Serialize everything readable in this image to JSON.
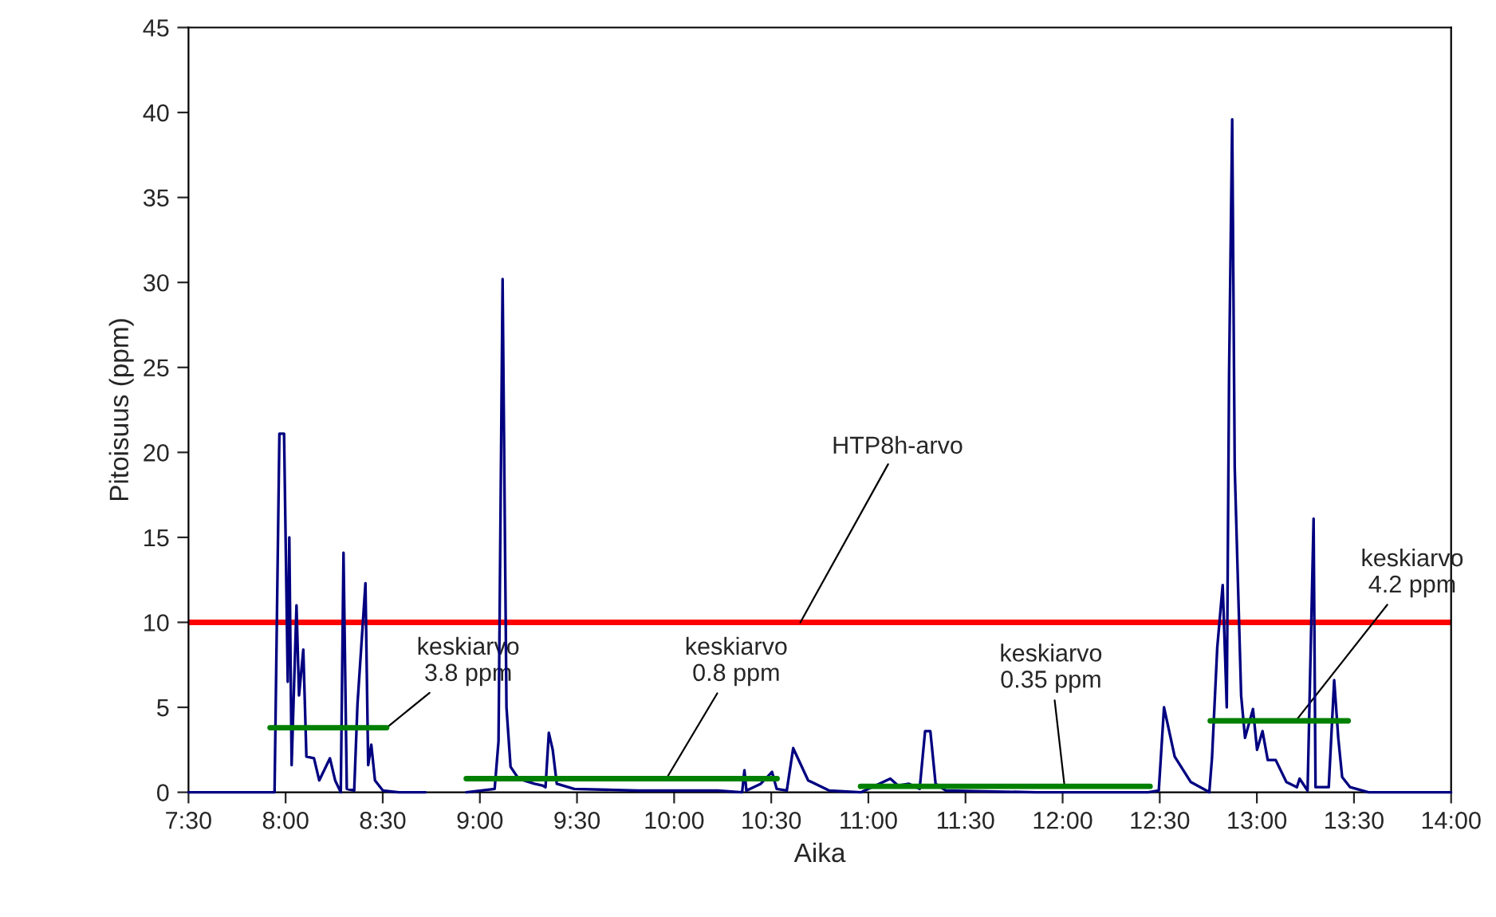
{
  "chart_data": {
    "type": "line",
    "xlabel": "Aika",
    "ylabel": "Pitoisuus (ppm)",
    "xlim": [
      7.5,
      14
    ],
    "ylim": [
      0,
      45
    ],
    "xticks": [
      {
        "value": 7.5,
        "label": "7:30"
      },
      {
        "value": 8,
        "label": "8:00"
      },
      {
        "value": 8.5,
        "label": "8:30"
      },
      {
        "value": 9,
        "label": "9:00"
      },
      {
        "value": 9.5,
        "label": "9:30"
      },
      {
        "value": 10,
        "label": "10:00"
      },
      {
        "value": 10.5,
        "label": "10:30"
      },
      {
        "value": 11,
        "label": "11:00"
      },
      {
        "value": 11.5,
        "label": "11:30"
      },
      {
        "value": 12,
        "label": "12:00"
      },
      {
        "value": 12.5,
        "label": "12:30"
      },
      {
        "value": 13,
        "label": "13:00"
      },
      {
        "value": 13.5,
        "label": "13:30"
      },
      {
        "value": 14,
        "label": "14:00"
      }
    ],
    "yticks": [
      0,
      5,
      10,
      15,
      20,
      25,
      30,
      35,
      40,
      45
    ],
    "grid": false,
    "legend": false,
    "series": [
      {
        "color": "#000080",
        "x": [
          7.5,
          7.943,
          7.968,
          7.992,
          8.011,
          8.019,
          8.031,
          8.056,
          8.069,
          8.091,
          8.107,
          8.146,
          8.173,
          8.228,
          8.255,
          8.284,
          8.298,
          8.315,
          8.353,
          8.37,
          8.411,
          8.425,
          8.441,
          8.46,
          8.501,
          8.583,
          8.72,
          8.8,
          8.93,
          9.076,
          9.096,
          9.117,
          9.137,
          9.158,
          9.199,
          9.281,
          9.322,
          9.338,
          9.355,
          9.375,
          9.396,
          9.486,
          9.814,
          10.225,
          10.35,
          10.362,
          10.372,
          10.446,
          10.504,
          10.528,
          10.58,
          10.613,
          10.69,
          10.799,
          10.963,
          11.113,
          11.152,
          11.209,
          11.264,
          11.292,
          11.319,
          11.346,
          11.398,
          11.866,
          12.44,
          12.495,
          12.522,
          12.577,
          12.66,
          12.741,
          12.755,
          12.769,
          12.796,
          12.824,
          12.837,
          12.845,
          12.857,
          12.873,
          12.886,
          12.919,
          12.939,
          12.98,
          13.001,
          13.029,
          13.056,
          13.097,
          13.152,
          13.206,
          13.22,
          13.261,
          13.292,
          13.302,
          13.37,
          13.398,
          13.419,
          13.439,
          13.48,
          13.575,
          14.0
        ],
        "values": [
          0,
          0,
          21.1,
          21.1,
          6.5,
          15.0,
          1.6,
          11.0,
          5.7,
          8.4,
          2.1,
          2.0,
          0.7,
          2.0,
          0.7,
          0,
          14.1,
          0.2,
          0.1,
          5.2,
          12.3,
          1.6,
          2.8,
          0.7,
          0.1,
          0,
          0,
          null,
          0,
          0.2,
          3,
          30.2,
          5,
          1.5,
          0.8,
          0.5,
          0.4,
          0.3,
          3.5,
          2.5,
          0.5,
          0.2,
          0.1,
          0.1,
          0,
          1.3,
          0.1,
          0.5,
          1.2,
          0.2,
          0.1,
          2.6,
          0.7,
          0.1,
          0,
          0.8,
          0.4,
          0.5,
          0.2,
          3.6,
          3.6,
          0.5,
          0.1,
          0,
          0,
          0.1,
          5.0,
          2.1,
          0.6,
          0.1,
          0,
          2.0,
          8.5,
          12.2,
          7.8,
          5.0,
          24.7,
          39.6,
          19.1,
          5.7,
          3.2,
          4.9,
          2.5,
          3.6,
          1.9,
          1.9,
          0.6,
          0.3,
          0.8,
          0.1,
          16.1,
          0.3,
          0.3,
          6.6,
          3.2,
          0.9,
          0.3,
          0,
          0
        ]
      },
      {
        "color": "#008000",
        "x": [
          7.92,
          8.52
        ],
        "values": [
          3.8,
          3.8
        ]
      },
      {
        "color": "#008000",
        "x": [
          8.93,
          10.53
        ],
        "values": [
          0.8,
          0.8
        ]
      },
      {
        "color": "#008000",
        "x": [
          10.96,
          12.45
        ],
        "values": [
          0.35,
          0.35
        ]
      },
      {
        "color": "#008000",
        "x": [
          12.76,
          13.47
        ],
        "values": [
          4.2,
          4.2
        ]
      }
    ],
    "ref_lines": [
      {
        "axis": "y",
        "value": 10,
        "label": "HTP8h-arvo",
        "color": "#ff0000"
      }
    ],
    "annotations": [
      {
        "text": "keskiarvo\n3.8 ppm",
        "x": 8.52,
        "y": 3.8
      },
      {
        "text": "keskiarvo\n0.8 ppm",
        "x": 9.96,
        "y": 0.8
      },
      {
        "text": "keskiarvo\n0.35 ppm",
        "x": 12.01,
        "y": 0.35
      },
      {
        "text": "keskiarvo\n4.2 ppm",
        "x": 13.2,
        "y": 4.2
      }
    ]
  }
}
